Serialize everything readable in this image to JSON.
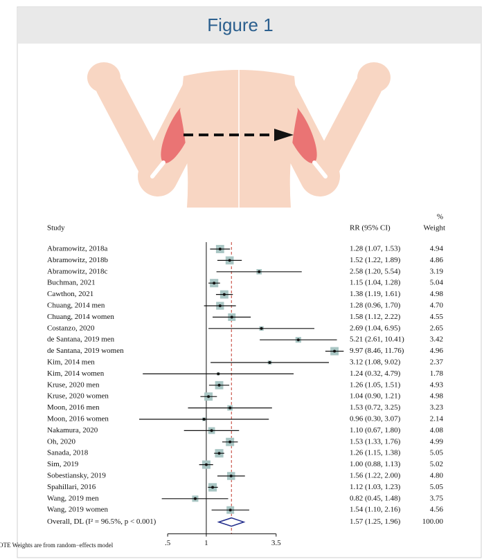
{
  "chart_data": {
    "type": "forest",
    "title": "Figure 1",
    "columns": {
      "study": "Study",
      "ci": "RR (95% CI)",
      "weight_top": "%",
      "weight": "Weight"
    },
    "studies": [
      "Abramowitz, 2018a",
      "Abramowitz, 2018b",
      "Abramowitz, 2018c",
      "Buchman, 2021",
      "Cawthon, 2021",
      "Chuang, 2014 men",
      "Chuang, 2014 women",
      "Costanzo, 2020",
      "de Santana, 2019 men",
      "de Santana, 2019 women",
      "Kim, 2014 men",
      "Kim, 2014 women",
      "Kruse, 2020 men",
      "Kruse, 2020 women",
      "Moon, 2016 men",
      "Moon, 2016 women",
      "Nakamura, 2020",
      "Oh, 2020",
      "Sanada, 2018",
      "Sim, 2019",
      "Sobestiansky, 2019",
      "Spahillari, 2016",
      "Wang, 2019 men",
      "Wang, 2019 women"
    ],
    "values": [
      1.28,
      1.52,
      2.58,
      1.15,
      1.38,
      1.28,
      1.58,
      2.69,
      5.21,
      9.97,
      3.12,
      1.24,
      1.26,
      1.04,
      1.53,
      0.96,
      1.1,
      1.53,
      1.26,
      1.0,
      1.56,
      1.12,
      0.82,
      1.54
    ],
    "lower": [
      1.07,
      1.22,
      1.2,
      1.04,
      1.19,
      0.96,
      1.12,
      1.04,
      2.61,
      8.46,
      1.08,
      0.32,
      1.05,
      0.9,
      0.72,
      0.3,
      0.67,
      1.33,
      1.15,
      0.88,
      1.22,
      1.03,
      0.45,
      1.1
    ],
    "upper": [
      1.53,
      1.89,
      5.54,
      1.28,
      1.61,
      1.7,
      2.22,
      6.95,
      10.41,
      11.76,
      9.02,
      4.79,
      1.51,
      1.21,
      3.25,
      3.07,
      1.8,
      1.76,
      1.38,
      1.13,
      2.0,
      1.23,
      1.48,
      2.16
    ],
    "ci_labels": [
      "1.28 (1.07, 1.53)",
      "1.52 (1.22, 1.89)",
      "2.58 (1.20, 5.54)",
      "1.15 (1.04, 1.28)",
      "1.38 (1.19, 1.61)",
      "1.28 (0.96, 1.70)",
      "1.58 (1.12, 2.22)",
      "2.69 (1.04, 6.95)",
      "5.21 (2.61, 10.41)",
      "9.97 (8.46, 11.76)",
      "3.12 (1.08, 9.02)",
      "1.24 (0.32, 4.79)",
      "1.26 (1.05, 1.51)",
      "1.04 (0.90, 1.21)",
      "1.53 (0.72, 3.25)",
      "0.96 (0.30, 3.07)",
      "1.10 (0.67, 1.80)",
      "1.53 (1.33, 1.76)",
      "1.26 (1.15, 1.38)",
      "1.00 (0.88, 1.13)",
      "1.56 (1.22, 2.00)",
      "1.12 (1.03, 1.23)",
      "0.82 (0.45, 1.48)",
      "1.54 (1.10, 2.16)"
    ],
    "weights": [
      4.94,
      4.86,
      3.19,
      5.04,
      4.98,
      4.7,
      4.55,
      2.65,
      3.42,
      4.96,
      2.37,
      1.78,
      4.93,
      4.98,
      3.23,
      2.14,
      4.08,
      4.99,
      5.05,
      5.02,
      4.8,
      5.05,
      3.75,
      4.56
    ],
    "weight_labels": [
      "4.94",
      "4.86",
      "3.19",
      "5.04",
      "4.98",
      "4.70",
      "4.55",
      "2.65",
      "3.42",
      "4.96",
      "2.37",
      "1.78",
      "4.93",
      "4.98",
      "3.23",
      "2.14",
      "4.08",
      "4.99",
      "5.05",
      "5.02",
      "4.80",
      "5.05",
      "3.75",
      "4.56"
    ],
    "overall": {
      "label": "Overall, DL (I² = 96.5%, p < 0.001)",
      "value": 1.57,
      "lower": 1.25,
      "upper": 1.96,
      "ci_label": "1.57 (1.25, 1.96)",
      "weight": 100,
      "weight_label": "100.00"
    },
    "footnote": "OTE  Weights are from random−effects model",
    "log_scale": true,
    "xlim": [
      0.3,
      12
    ],
    "xticks": [
      {
        "value": 0.5,
        "label": ".5"
      },
      1,
      3.5
    ],
    "null_value": 1,
    "box_color": "#a9c6c4",
    "ref_line_color": "#c0392b",
    "diamond_color": "#1f2a8a"
  }
}
